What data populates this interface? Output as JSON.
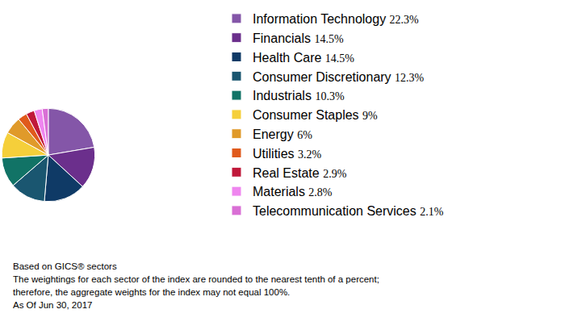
{
  "chart_data": {
    "type": "pie",
    "categories": [
      "Information Technology",
      "Financials",
      "Health Care",
      "Consumer Discretionary",
      "Industrials",
      "Consumer Staples",
      "Energy",
      "Utilities",
      "Real Estate",
      "Materials",
      "Telecommunication Services"
    ],
    "values": [
      22.3,
      14.5,
      14.5,
      12.3,
      10.3,
      9,
      6,
      3.2,
      2.9,
      2.8,
      2.1
    ],
    "value_labels": [
      "22.3%",
      "14.5%",
      "14.5%",
      "12.3%",
      "10.3%",
      "9%",
      "6%",
      "3.2%",
      "2.9%",
      "2.8%",
      "2.1%"
    ],
    "colors": [
      "#8456a8",
      "#6b2f8c",
      "#0f3a66",
      "#1a5670",
      "#117366",
      "#f5cf3a",
      "#e09a2a",
      "#e05a1c",
      "#c0183a",
      "#ef86ef",
      "#d96fd5"
    ],
    "legend": "right",
    "annotations": [
      "Based on GICS® sectors",
      "The weightings for each sector of the index are rounded to the nearest tenth of a percent;",
      "therefore, the aggregate weights for the index may not equal 100%.",
      "As Of Jun 30, 2017"
    ]
  }
}
